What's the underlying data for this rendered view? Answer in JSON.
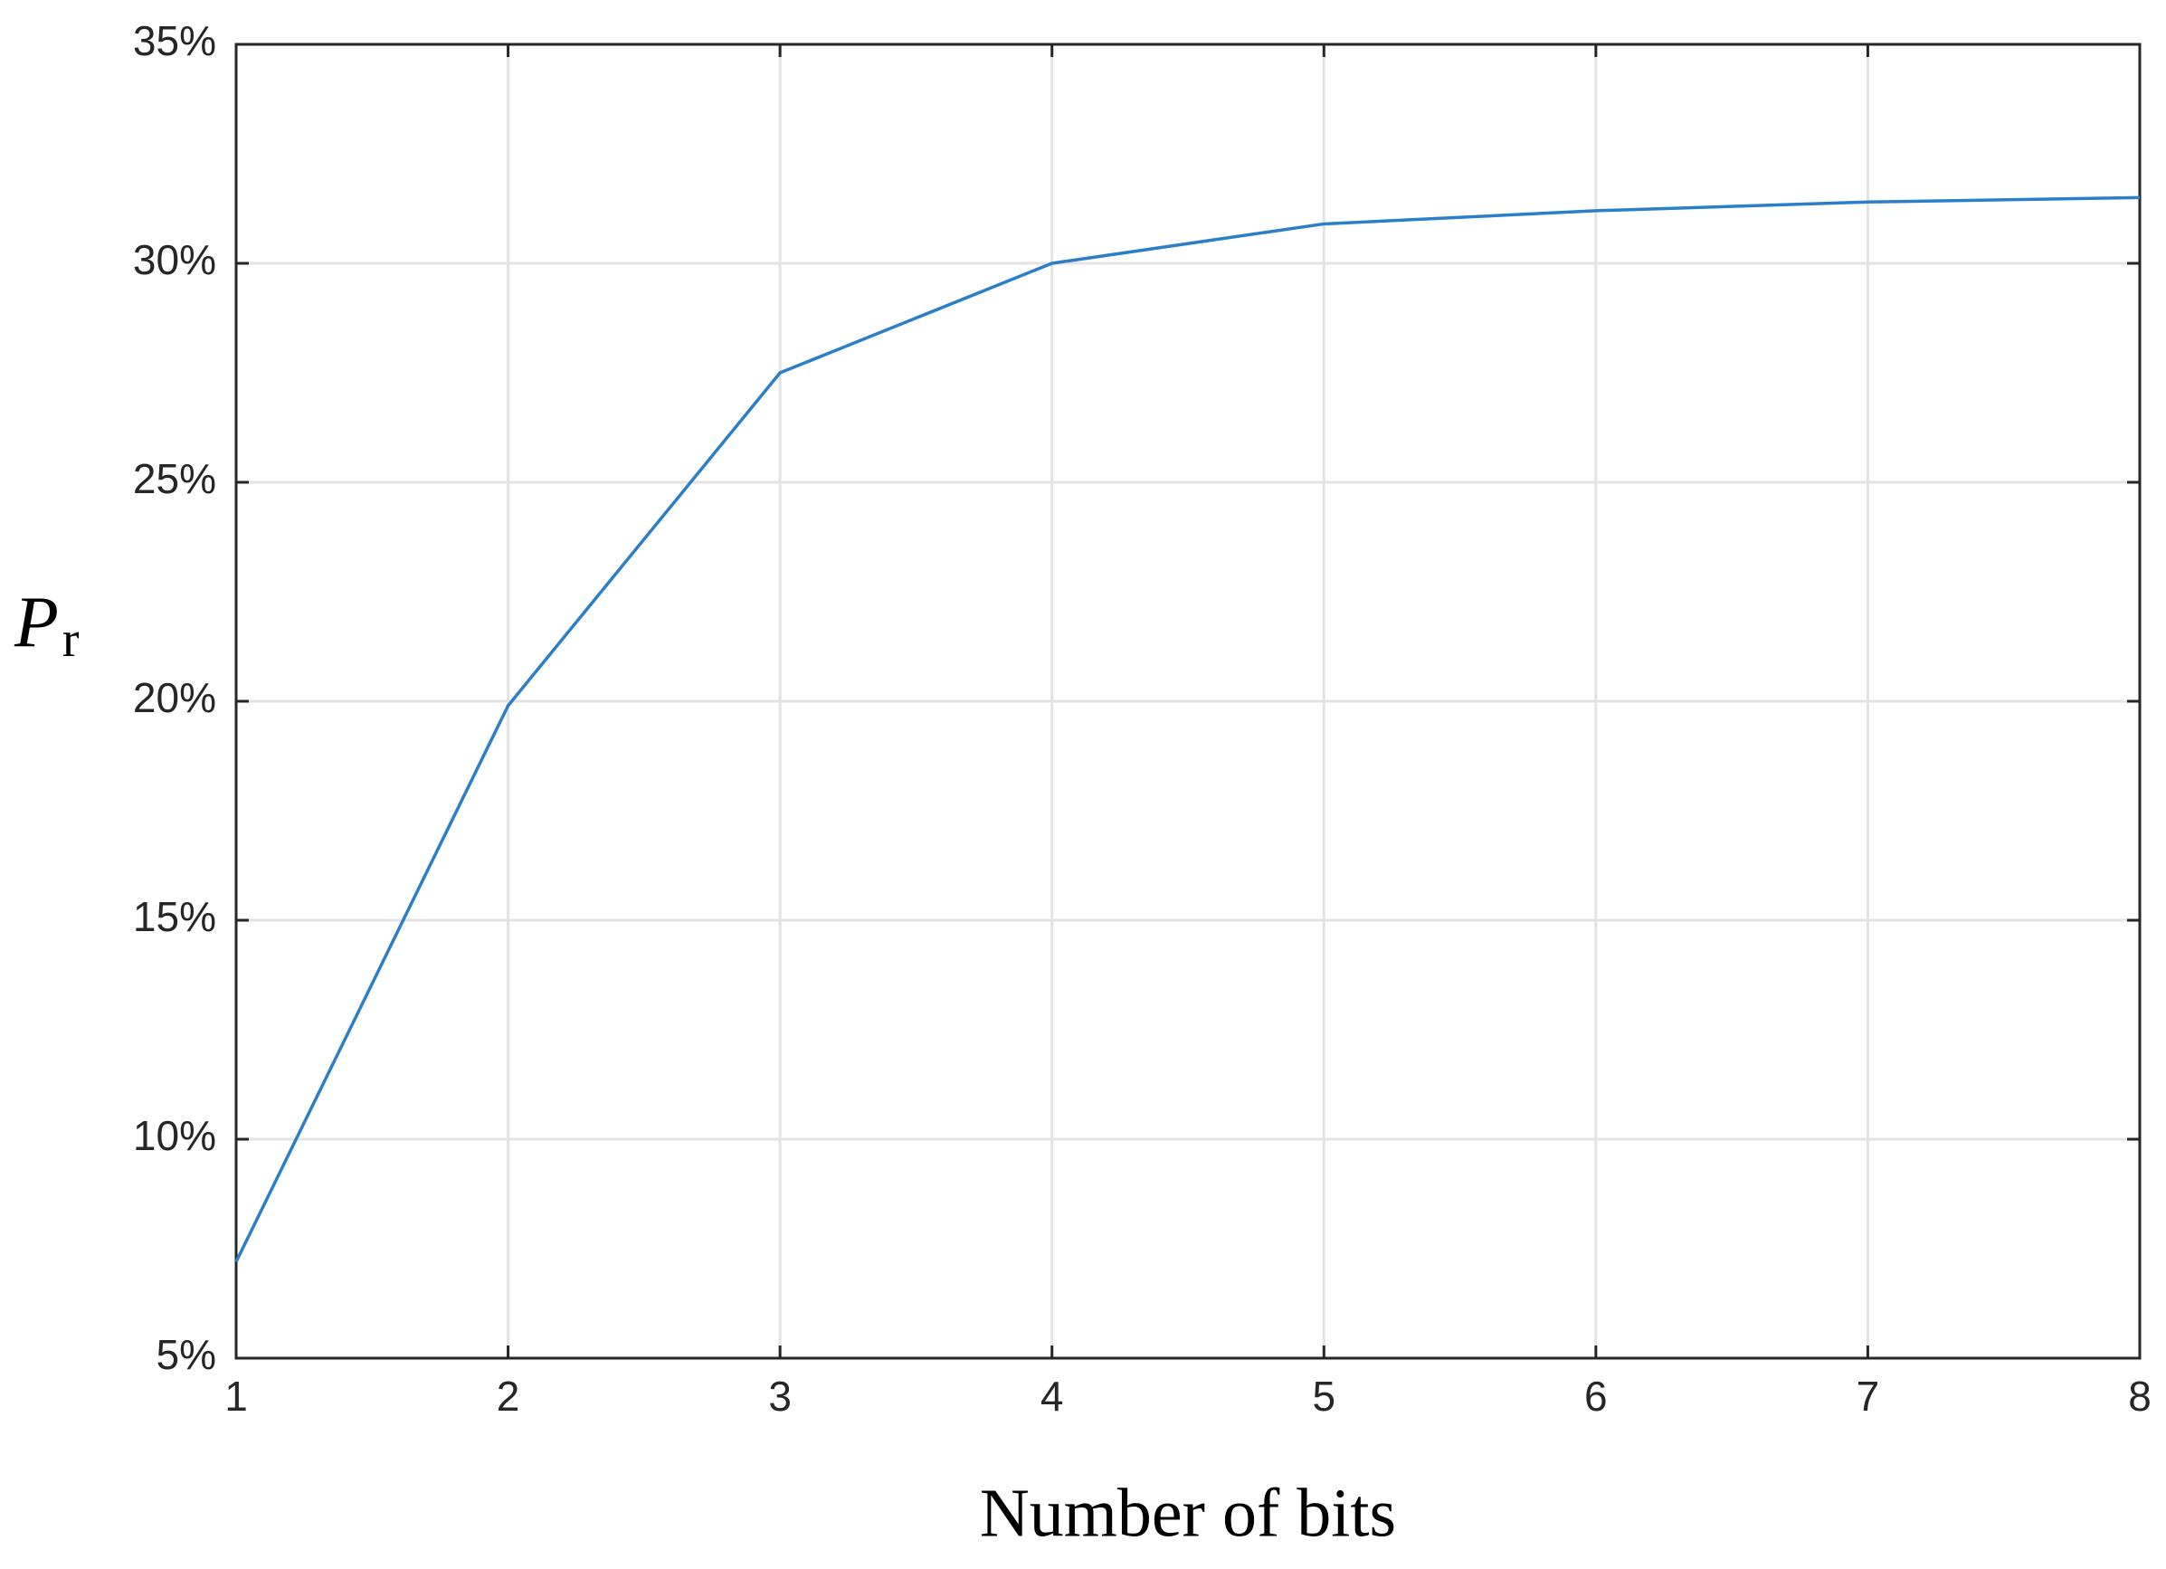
{
  "chart_data": {
    "type": "line",
    "x_label": "Number of bits",
    "y_label": "P",
    "y_label_subscript": "r",
    "x": [
      1,
      2,
      3,
      4,
      5,
      6,
      7,
      8
    ],
    "series": [
      {
        "color": "#2a7fc8",
        "values": [
          7.2,
          19.9,
          27.5,
          30.0,
          30.9,
          31.2,
          31.4,
          31.5
        ]
      }
    ],
    "xlim": [
      1,
      8
    ],
    "xticks": [
      1,
      2,
      3,
      4,
      5,
      6,
      7,
      8
    ],
    "ylim": [
      5,
      35
    ],
    "yticks": [
      {
        "value": 5,
        "label": "5%"
      },
      {
        "value": 10,
        "label": "10%"
      },
      {
        "value": 15,
        "label": "15%"
      },
      {
        "value": 20,
        "label": "20%"
      },
      {
        "value": 25,
        "label": "25%"
      },
      {
        "value": 30,
        "label": "30%"
      },
      {
        "value": 35,
        "label": "35%"
      }
    ],
    "grid": true
  }
}
